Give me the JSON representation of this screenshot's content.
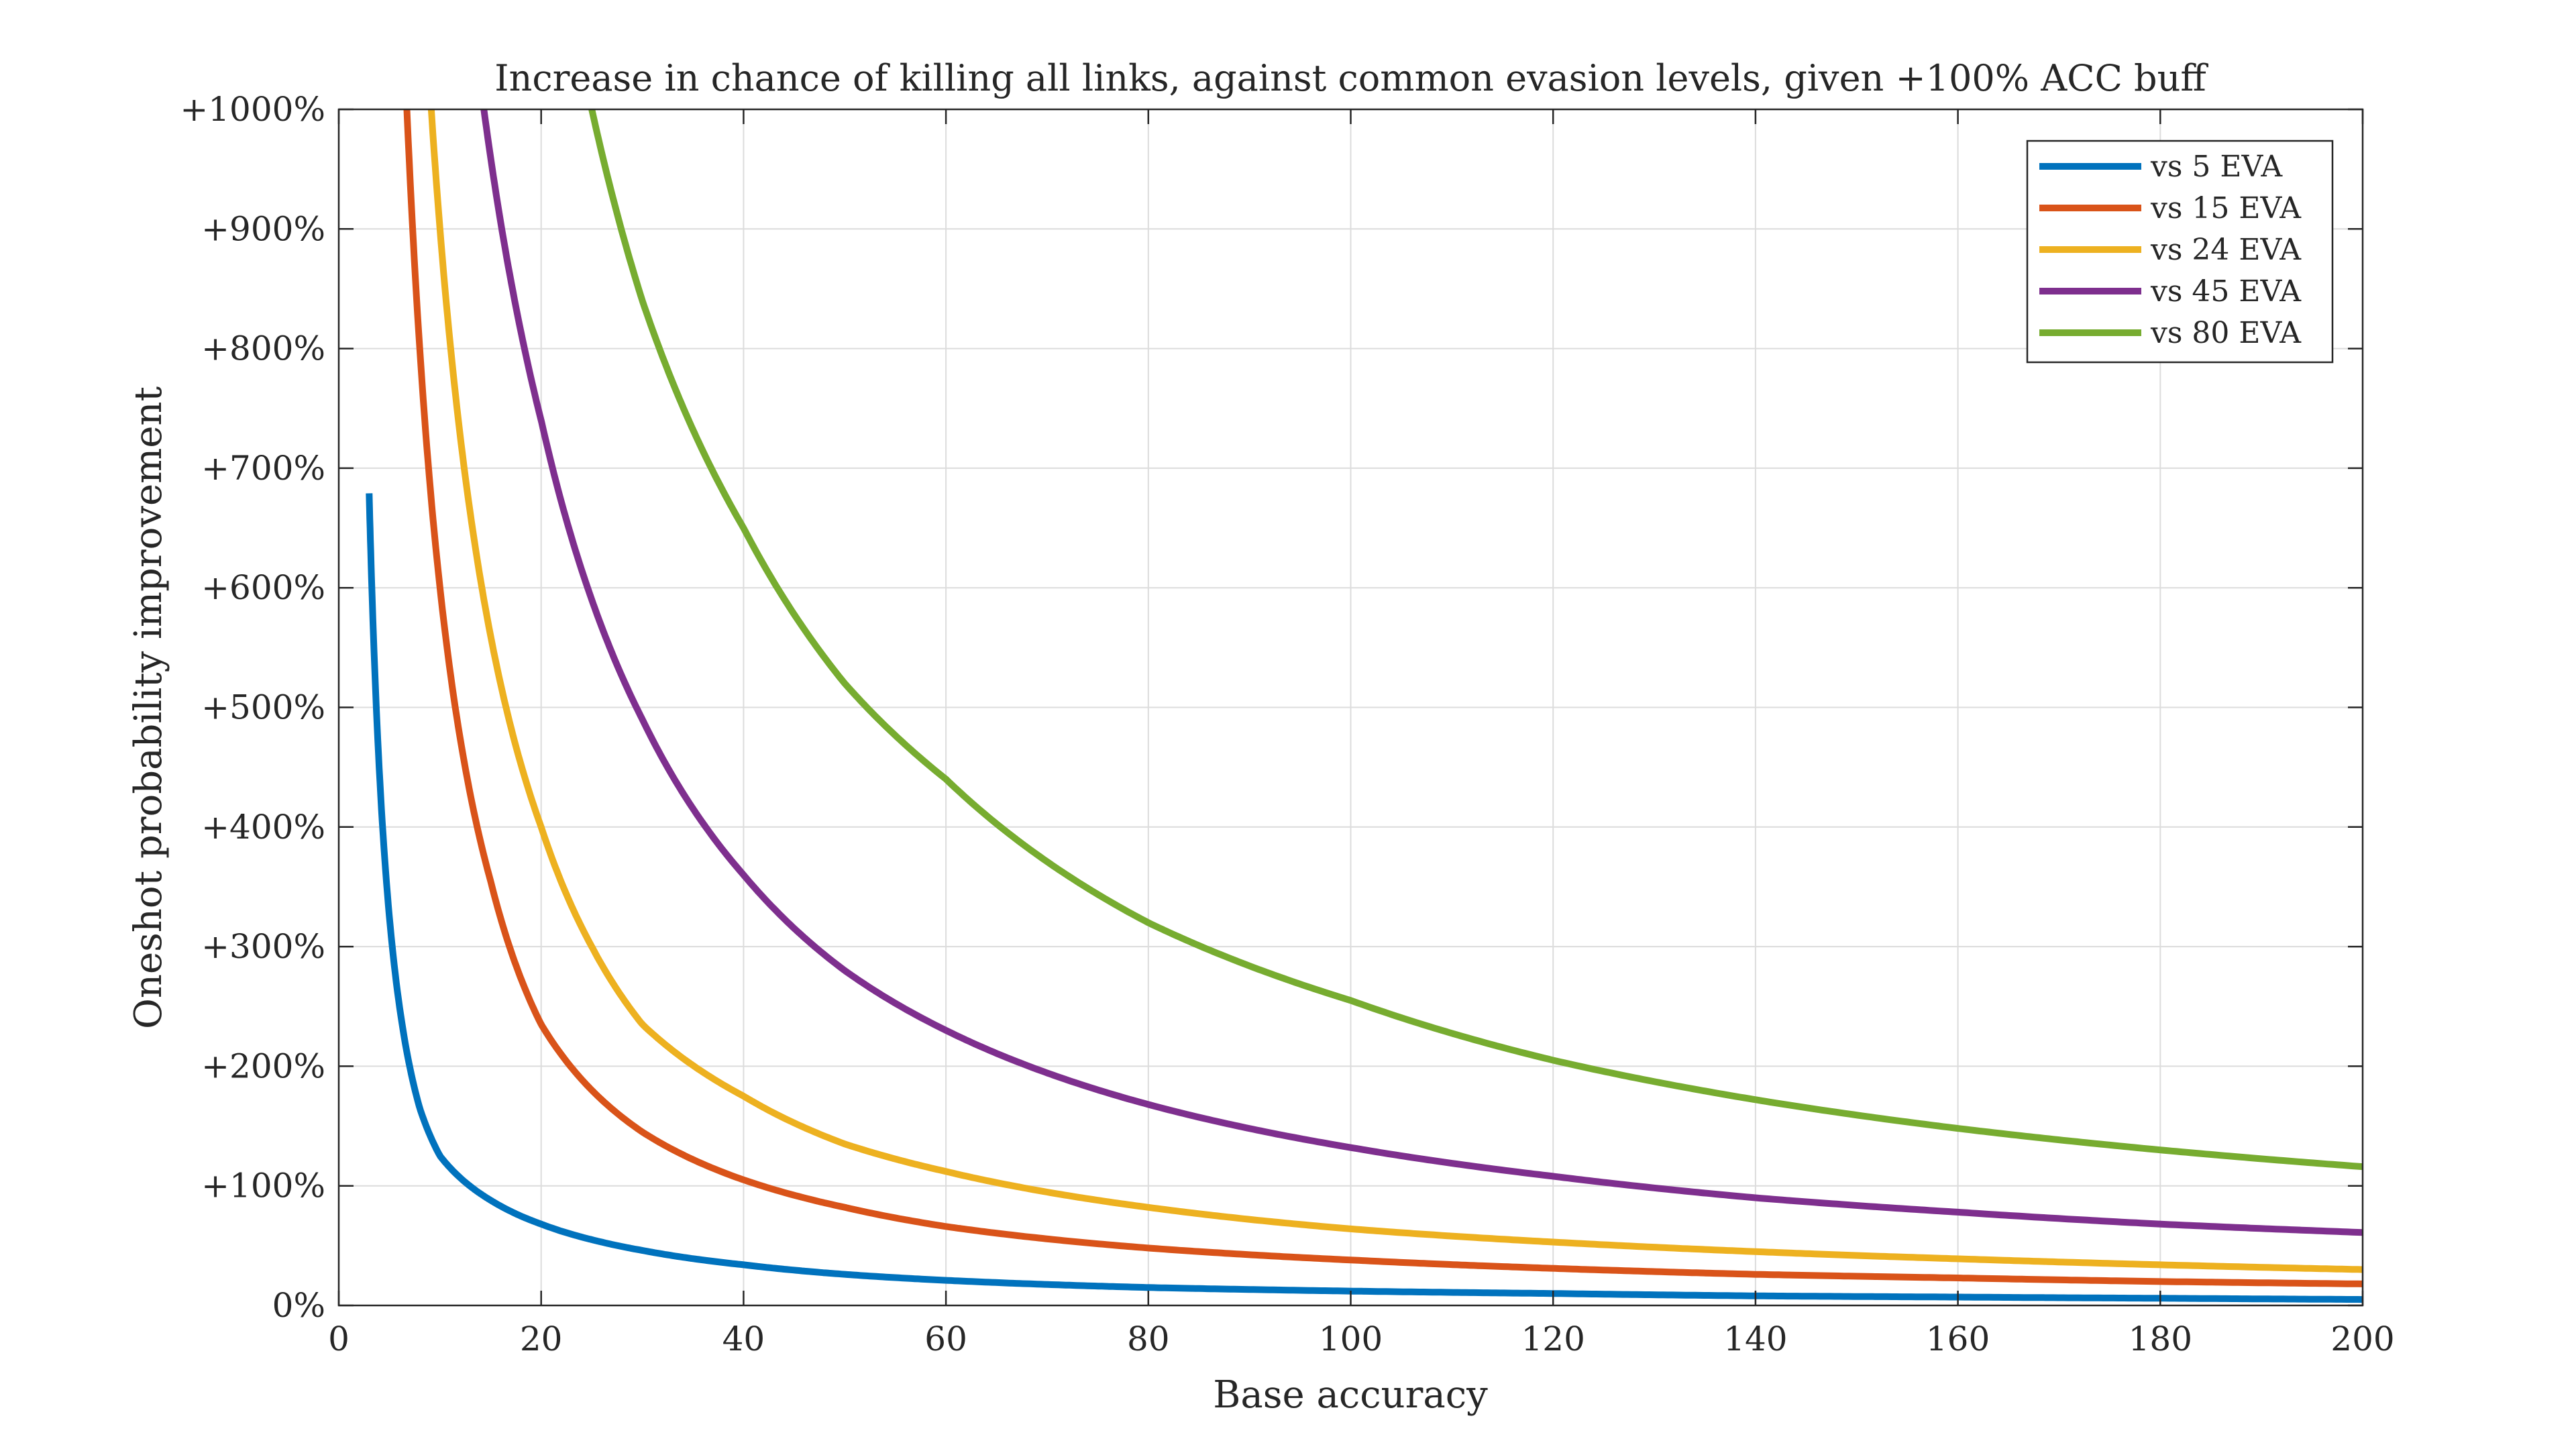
{
  "chart_data": {
    "type": "line",
    "title": "Increase in chance of killing all links, against common evasion levels, given +100% ACC buff",
    "xlabel": "Base accuracy",
    "ylabel": "Oneshot probability improvement",
    "xlim": [
      0,
      200
    ],
    "ylim": [
      0,
      1000
    ],
    "xticks": [
      0,
      20,
      40,
      60,
      80,
      100,
      120,
      140,
      160,
      180,
      200
    ],
    "xtick_labels": [
      "0",
      "20",
      "40",
      "60",
      "80",
      "100",
      "120",
      "140",
      "160",
      "180",
      "200"
    ],
    "yticks": [
      0,
      100,
      200,
      300,
      400,
      500,
      600,
      700,
      800,
      900,
      1000
    ],
    "ytick_labels": [
      "0%",
      "+100%",
      "+200%",
      "+300%",
      "+400%",
      "+500%",
      "+600%",
      "+700%",
      "+800%",
      "+900%",
      "+1000%"
    ],
    "grid": true,
    "legend_position": "top-right",
    "x": [
      2,
      5,
      8,
      10,
      15,
      20,
      25,
      30,
      40,
      50,
      60,
      80,
      100,
      120,
      140,
      160,
      180,
      200
    ],
    "series": [
      {
        "name": "vs 5 EVA",
        "color": "#0072BD",
        "values": [
          null,
          325,
          165,
          125,
          88,
          68,
          55,
          46,
          34,
          26,
          21,
          15,
          12,
          10,
          8,
          7,
          6,
          5
        ]
      },
      {
        "name": "vs 15 EVA",
        "color": "#D95319",
        "values": [
          null,
          null,
          800,
          600,
          355,
          235,
          180,
          145,
          105,
          82,
          66,
          48,
          38,
          31,
          26,
          23,
          20,
          18
        ]
      },
      {
        "name": "vs 24 EVA",
        "color": "#EDB120",
        "values": [
          null,
          null,
          null,
          900,
          560,
          400,
          300,
          235,
          175,
          135,
          112,
          82,
          64,
          53,
          45,
          39,
          34,
          30
        ]
      },
      {
        "name": "vs 45 EVA",
        "color": "#7E2F8E",
        "values": [
          null,
          null,
          null,
          null,
          960,
          740,
          590,
          490,
          360,
          280,
          230,
          168,
          132,
          108,
          90,
          78,
          68,
          61
        ]
      },
      {
        "name": "vs 80 EVA",
        "color": "#77AC30",
        "values": [
          null,
          null,
          null,
          null,
          null,
          null,
          1000,
          840,
          650,
          520,
          440,
          320,
          255,
          205,
          172,
          148,
          130,
          116
        ]
      }
    ]
  }
}
